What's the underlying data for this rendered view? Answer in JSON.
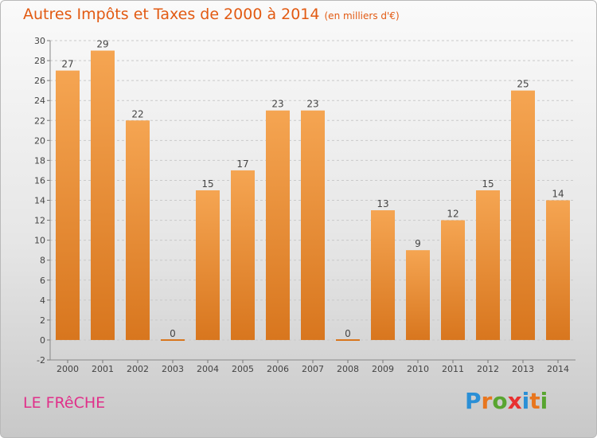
{
  "header": {
    "title": "Autres Impôts et Taxes de 2000 à 2014",
    "subtitle": "(en milliers d'€)"
  },
  "footer": {
    "place": "LE FRêCHE",
    "logo_text": "Proxiti",
    "logo_colors": [
      "#2a8fd6",
      "#e8761e",
      "#58a530",
      "#e83030",
      "#2a8fd6",
      "#e8761e",
      "#58a530"
    ]
  },
  "chart_data": {
    "type": "bar",
    "categories": [
      "2000",
      "2001",
      "2002",
      "2003",
      "2004",
      "2005",
      "2006",
      "2007",
      "2008",
      "2009",
      "2010",
      "2011",
      "2012",
      "2013",
      "2014"
    ],
    "values": [
      27,
      29,
      22,
      0,
      15,
      17,
      23,
      23,
      0,
      13,
      9,
      12,
      15,
      25,
      14
    ],
    "title": "Autres Impôts et Taxes de 2000 à 2014",
    "subtitle": "(en milliers d'€)",
    "xlabel": "",
    "ylabel": "",
    "ylim": [
      -2,
      30
    ],
    "yticks": [
      -2,
      0,
      2,
      4,
      6,
      8,
      10,
      12,
      14,
      16,
      18,
      20,
      22,
      24,
      26,
      28,
      30
    ],
    "grid": true,
    "bar_color_top": "#f5a552",
    "bar_color_bottom": "#d8761e",
    "value_labels": true
  }
}
